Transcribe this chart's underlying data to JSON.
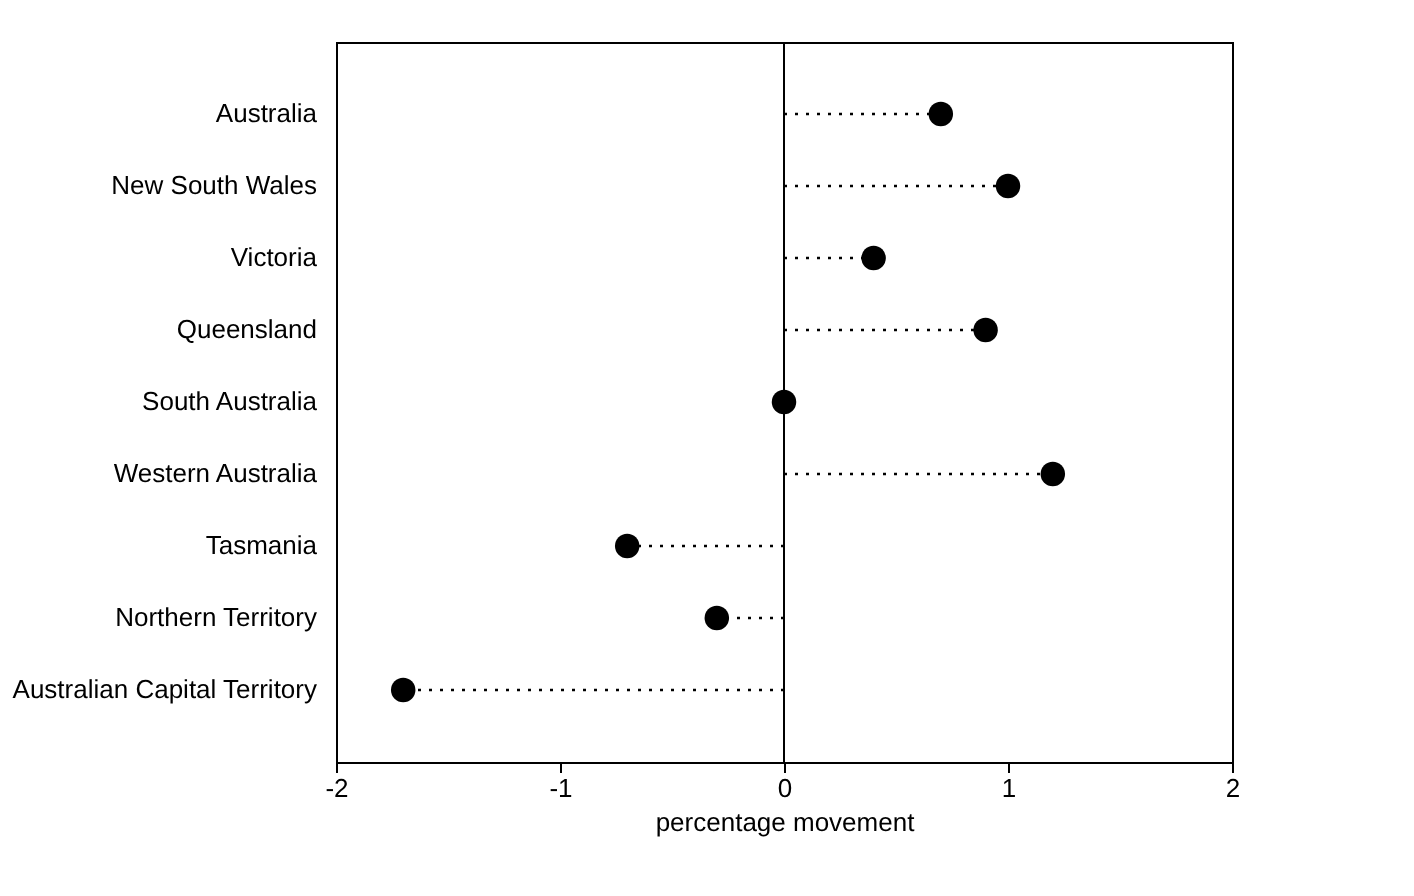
{
  "chart_data": {
    "type": "lollipop",
    "orientation": "horizontal",
    "xlabel": "percentage movement",
    "categories": [
      "Australia",
      "New South Wales",
      "Victoria",
      "Queensland",
      "South Australia",
      "Western Australia",
      "Tasmania",
      "Northern Territory",
      "Australian Capital Territory"
    ],
    "values": [
      0.7,
      1.0,
      0.4,
      0.9,
      0.0,
      1.2,
      -0.7,
      -0.3,
      -1.7
    ],
    "color": "#000000",
    "xlim": [
      -2,
      2
    ],
    "xticks": [
      -2,
      -1,
      0,
      1,
      2
    ],
    "ref_lines": [
      {
        "axis": "x",
        "value": 0,
        "color": "#000000",
        "line_style": "solid"
      }
    ],
    "marker": "circle",
    "line_style": "dotted",
    "grid": false
  }
}
